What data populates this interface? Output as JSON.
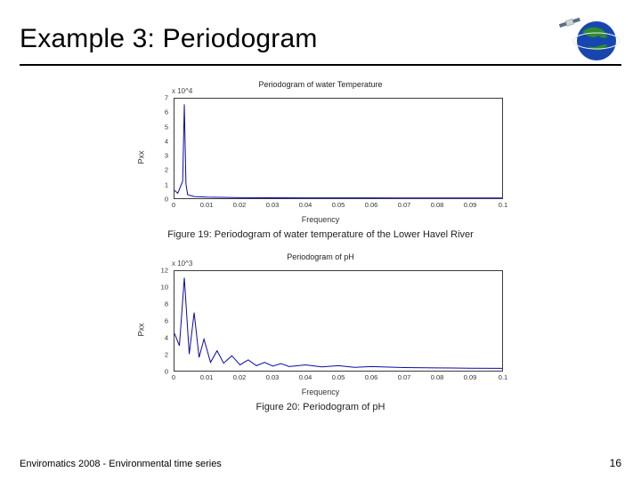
{
  "title": "Example 3: Periodogram",
  "footer_text": "Enviromatics 2008 - Environmental time series",
  "page_number": "16",
  "rule_color": "#000000",
  "chart1": {
    "type": "line",
    "plot_title": "Periodogram of water Temperature",
    "caption": "Figure 19: Periodogram of water temperature of the Lower Havel River",
    "xlabel": "Frequency",
    "ylabel": "Pxx",
    "y_exponent_label": "x 10^4",
    "xlim": [
      0,
      0.1
    ],
    "ylim": [
      0,
      7
    ],
    "xticks": [
      0,
      0.01,
      0.02,
      0.03,
      0.04,
      0.05,
      0.06,
      0.07,
      0.08,
      0.09,
      0.1
    ],
    "xtick_labels": [
      "0",
      "0.01",
      "0.02",
      "0.03",
      "0.04",
      "0.05",
      "0.06",
      "0.07",
      "0.08",
      "0.09",
      "0.1"
    ],
    "yticks": [
      0,
      1,
      2,
      3,
      4,
      5,
      6,
      7
    ],
    "ytick_labels": [
      "0",
      "1",
      "2",
      "3",
      "4",
      "5",
      "6",
      "7"
    ],
    "line_color": "#0a0aa8",
    "line_width": 1,
    "background_color": "#ffffff",
    "axis_color": "#3a3a3a",
    "x": [
      0,
      0.001,
      0.0025,
      0.003,
      0.0035,
      0.004,
      0.006,
      0.01,
      0.02,
      0.03,
      0.04,
      0.05,
      0.06,
      0.07,
      0.08,
      0.09,
      0.1
    ],
    "y": [
      0.55,
      0.35,
      1.2,
      6.6,
      1.0,
      0.25,
      0.12,
      0.08,
      0.04,
      0.03,
      0.025,
      0.02,
      0.02,
      0.018,
      0.016,
      0.015,
      0.015
    ]
  },
  "chart2": {
    "type": "line",
    "plot_title": "Periodogram of pH",
    "caption": "Figure 20: Periodogram of pH",
    "xlabel": "Frequency",
    "ylabel": "Pxx",
    "y_exponent_label": "x 10^3",
    "xlim": [
      0,
      0.1
    ],
    "ylim": [
      0,
      12
    ],
    "xticks": [
      0,
      0.01,
      0.02,
      0.03,
      0.04,
      0.05,
      0.06,
      0.07,
      0.08,
      0.09,
      0.1
    ],
    "xtick_labels": [
      "0",
      "0.01",
      "0.02",
      "0.03",
      "0.04",
      "0.05",
      "0.06",
      "0.07",
      "0.08",
      "0.09",
      "0.1"
    ],
    "yticks": [
      0,
      2,
      4,
      6,
      8,
      10,
      12
    ],
    "ytick_labels": [
      "0",
      "2",
      "4",
      "6",
      "8",
      "10",
      "12"
    ],
    "line_color": "#0a0aa8",
    "line_width": 1,
    "background_color": "#ffffff",
    "axis_color": "#3a3a3a",
    "x": [
      0,
      0.0015,
      0.003,
      0.0045,
      0.006,
      0.0075,
      0.009,
      0.011,
      0.013,
      0.015,
      0.0175,
      0.02,
      0.0225,
      0.025,
      0.0275,
      0.03,
      0.0325,
      0.035,
      0.04,
      0.045,
      0.05,
      0.055,
      0.06,
      0.07,
      0.08,
      0.09,
      0.1
    ],
    "y": [
      4.5,
      3.0,
      11.2,
      2.0,
      7.0,
      1.6,
      3.8,
      1.0,
      2.4,
      0.9,
      1.8,
      0.7,
      1.3,
      0.6,
      1.0,
      0.55,
      0.85,
      0.5,
      0.7,
      0.45,
      0.6,
      0.4,
      0.5,
      0.38,
      0.33,
      0.3,
      0.28
    ]
  },
  "logo": {
    "globe_fill": "#1846b0",
    "land_fill": "#2e8b2e",
    "sat_body": "#cfd3d8",
    "sat_panel": "#5a6d88"
  }
}
